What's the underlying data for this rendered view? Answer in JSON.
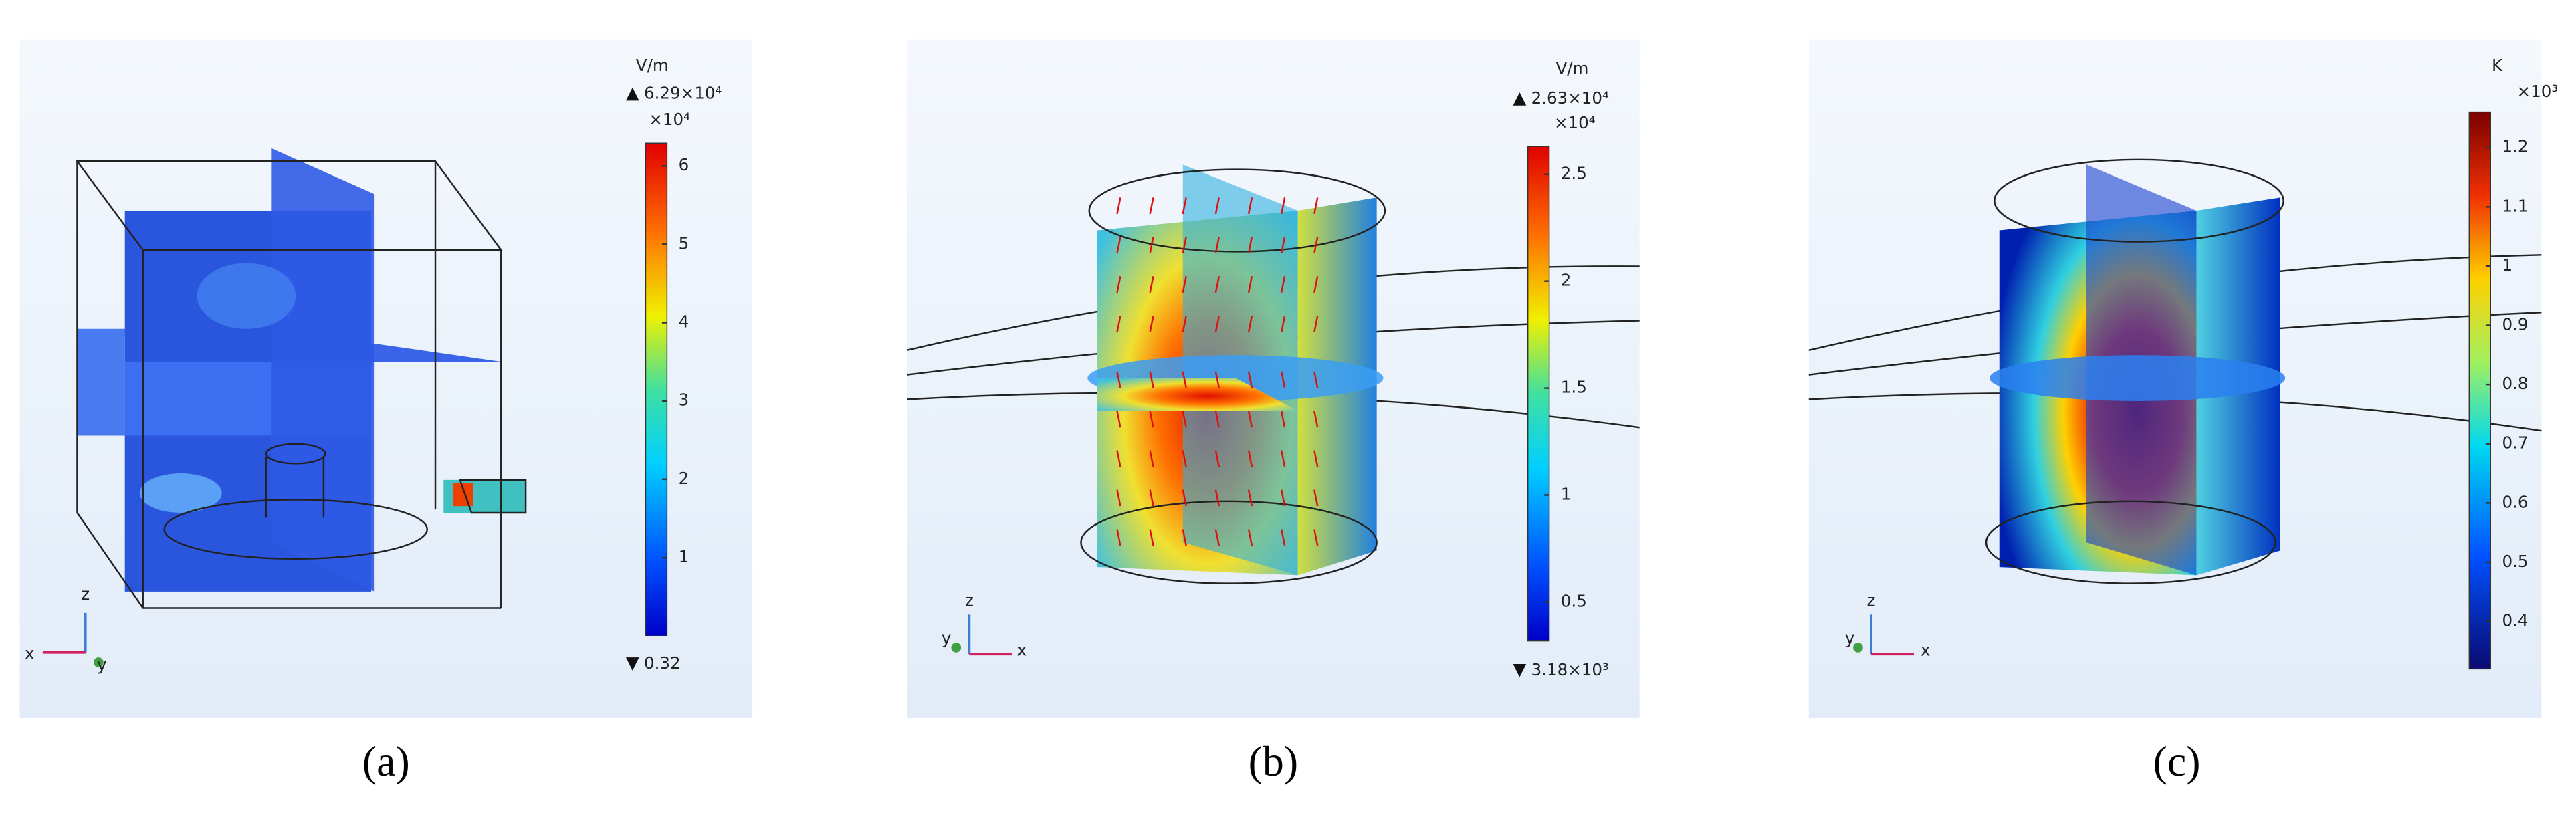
{
  "panels": [
    {
      "label": "(a)",
      "colorbar": {
        "unit": "V/m",
        "max": "6.29×10⁴",
        "multiplier": "×10⁴",
        "min": "0.32",
        "ticks": [
          6,
          5,
          4,
          3,
          2,
          1
        ],
        "range": [
          0,
          6.29
        ]
      },
      "axes": [
        "x",
        "y",
        "z"
      ]
    },
    {
      "label": "(b)",
      "colorbar": {
        "unit": "V/m",
        "max": "2.63×10⁴",
        "multiplier": "×10⁴",
        "min": "3.18×10³",
        "ticks": [
          2.5,
          2,
          1.5,
          1,
          0.5
        ],
        "range": [
          0.318,
          2.63
        ]
      },
      "axes": [
        "x",
        "y",
        "z"
      ]
    },
    {
      "label": "(c)",
      "colorbar": {
        "unit": "K",
        "multiplier": "×10³",
        "ticks": [
          1.2,
          1.1,
          1,
          0.9,
          0.8,
          0.7,
          0.6,
          0.5,
          0.4
        ],
        "range": [
          0.32,
          1.26
        ]
      },
      "axes": [
        "x",
        "y",
        "z"
      ]
    }
  ]
}
